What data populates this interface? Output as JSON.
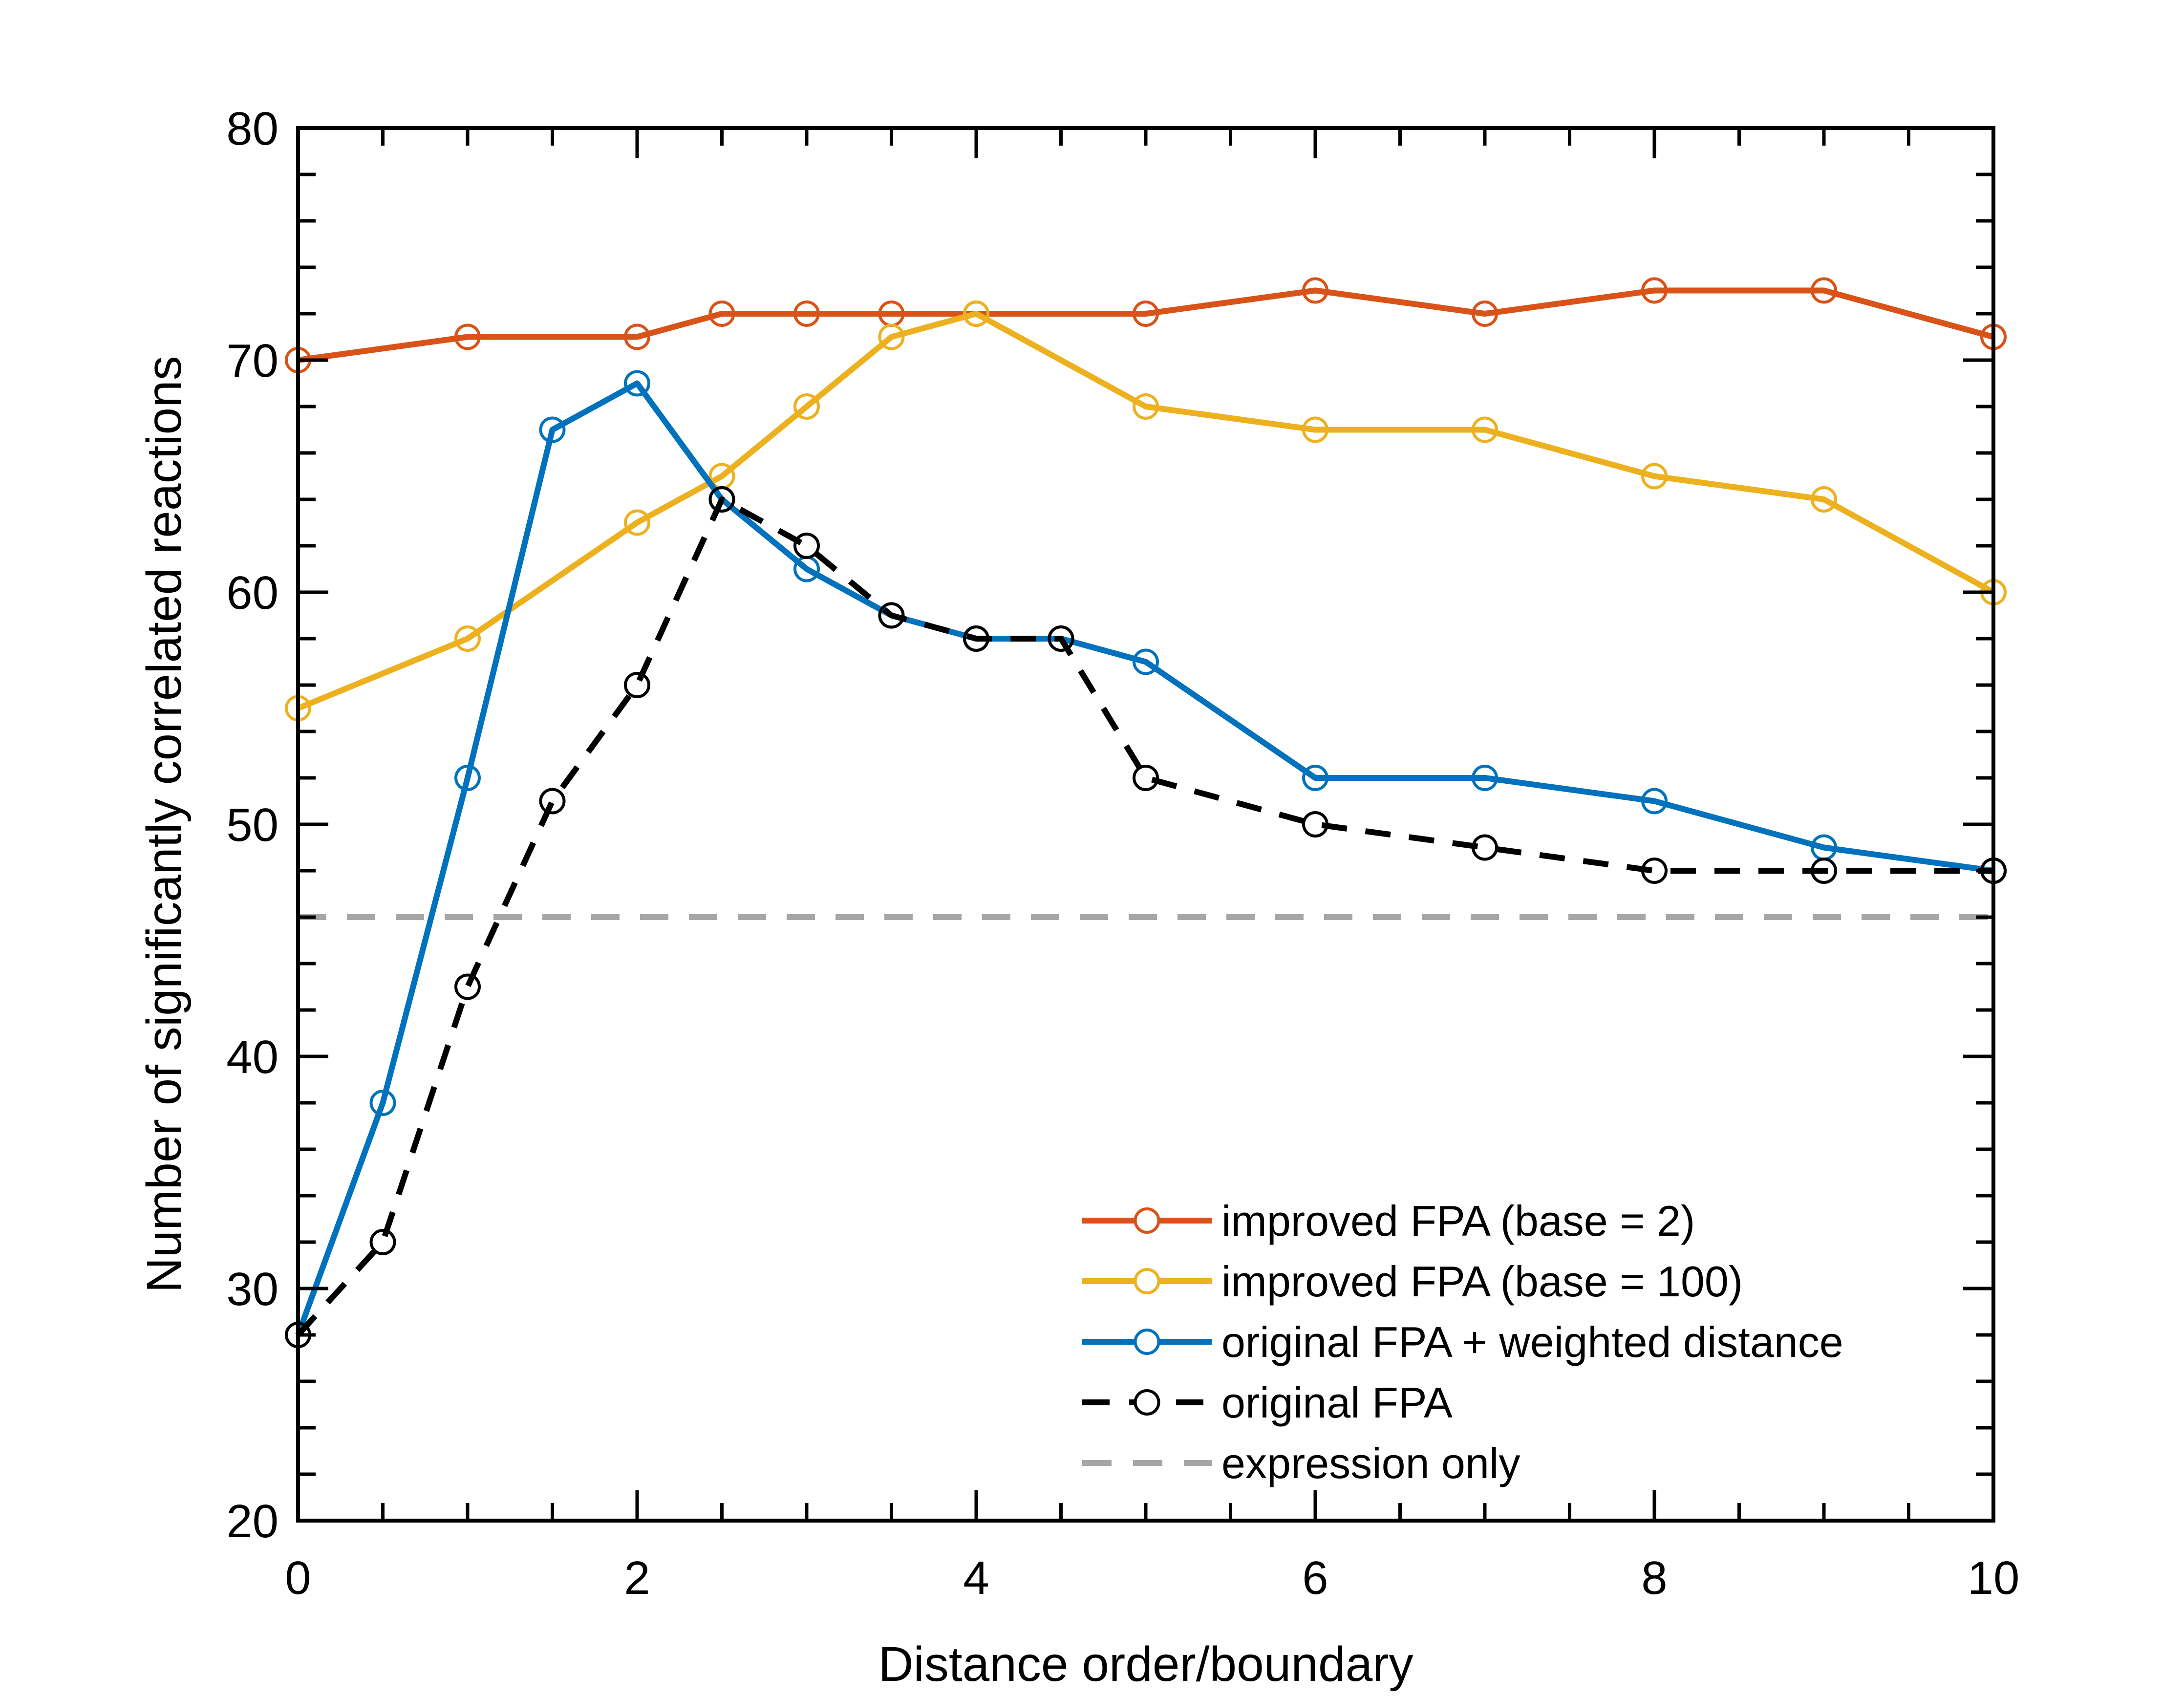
{
  "chart_data": {
    "type": "line",
    "title": "",
    "xlabel": "Distance order/boundary",
    "ylabel": "Number of significantly correlated reactions",
    "xlim": [
      0,
      10
    ],
    "ylim": [
      20,
      80
    ],
    "xticks": [
      0,
      2,
      4,
      6,
      8,
      10
    ],
    "yticks": [
      20,
      30,
      40,
      50,
      60,
      70,
      80
    ],
    "x_minor_step": 0.5,
    "y_minor_step": 2,
    "grid": false,
    "legend_position": "lower-right",
    "series": [
      {
        "name": "improved FPA (base = 2)",
        "color": "#D95319",
        "line_style": "solid",
        "marker": "open-circle",
        "points": [
          [
            0,
            70
          ],
          [
            1,
            71
          ],
          [
            2,
            71
          ],
          [
            2.5,
            72
          ],
          [
            3,
            72
          ],
          [
            3.5,
            72
          ],
          [
            4,
            72
          ],
          [
            5,
            72
          ],
          [
            6,
            73
          ],
          [
            7,
            72
          ],
          [
            8,
            73
          ],
          [
            9,
            73
          ],
          [
            10,
            71
          ]
        ]
      },
      {
        "name": "improved FPA (base = 100)",
        "color": "#EDB120",
        "line_style": "solid",
        "marker": "open-circle",
        "points": [
          [
            0,
            55
          ],
          [
            1,
            58
          ],
          [
            2,
            63
          ],
          [
            2.5,
            65
          ],
          [
            3,
            68
          ],
          [
            3.5,
            71
          ],
          [
            4,
            72
          ],
          [
            5,
            68
          ],
          [
            6,
            67
          ],
          [
            7,
            67
          ],
          [
            8,
            65
          ],
          [
            9,
            64
          ],
          [
            10,
            60
          ]
        ]
      },
      {
        "name": "original FPA + weighted distance",
        "color": "#0072BD",
        "line_style": "solid",
        "marker": "open-circle",
        "points": [
          [
            0,
            28
          ],
          [
            0.5,
            38
          ],
          [
            1,
            52
          ],
          [
            1.5,
            67
          ],
          [
            2,
            69
          ],
          [
            2.5,
            64
          ],
          [
            3,
            61
          ],
          [
            3.5,
            59
          ],
          [
            4,
            58
          ],
          [
            4.5,
            58
          ],
          [
            5,
            57
          ],
          [
            6,
            52
          ],
          [
            7,
            52
          ],
          [
            8,
            51
          ],
          [
            9,
            49
          ],
          [
            10,
            48
          ]
        ]
      },
      {
        "name": "original FPA",
        "color": "#000000",
        "line_style": "dashed",
        "marker": "open-circle",
        "points": [
          [
            0,
            28
          ],
          [
            0.5,
            32
          ],
          [
            1,
            43
          ],
          [
            1.5,
            51
          ],
          [
            2,
            56
          ],
          [
            2.5,
            64
          ],
          [
            3,
            62
          ],
          [
            3.5,
            59
          ],
          [
            4,
            58
          ],
          [
            4.5,
            58
          ],
          [
            5,
            52
          ],
          [
            6,
            50
          ],
          [
            7,
            49
          ],
          [
            8,
            48
          ],
          [
            9,
            48
          ],
          [
            10,
            48
          ]
        ]
      },
      {
        "name": "expression only",
        "color": "#A6A6A6",
        "line_style": "dashed",
        "marker": "none",
        "points": [
          [
            0,
            46
          ],
          [
            10,
            46
          ]
        ]
      }
    ]
  }
}
